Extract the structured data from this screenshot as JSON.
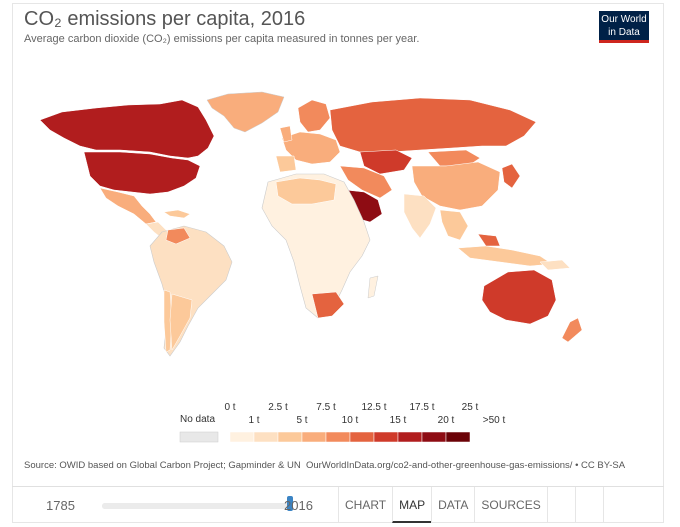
{
  "header": {
    "title": "CO₂ emissions per capita, 2016",
    "subtitle": "Average carbon dioxide (CO₂) emissions per capita measured in tonnes per year.",
    "logo_line1": "Our World",
    "logo_line2": "in Data"
  },
  "colors": {
    "ocean": "#ffffff",
    "no_data": "#e8e8e8",
    "border": "#cccccc",
    "accent_tab": "#333333",
    "slider_handle": "#3b84c4",
    "logo_bg": "#002147",
    "logo_bar": "#ce261e"
  },
  "legend": {
    "no_data_label": "No data",
    "bins_upper": [
      "0 t",
      "2.5 t",
      "7.5 t",
      "12.5 t",
      "17.5 t",
      "25 t"
    ],
    "bins_lower": [
      "1 t",
      "5 t",
      "10 t",
      "15 t",
      "20 t",
      ">50 t"
    ],
    "swatches": [
      "#fff1e0",
      "#fde0c2",
      "#fcc99a",
      "#f9ad7c",
      "#f28a5c",
      "#e4633f",
      "#cf3a2a",
      "#b11d1e",
      "#8e0c13",
      "#6b0207"
    ]
  },
  "source": {
    "text": "Source: OWID based on Global Carbon Project; Gapminder & UN",
    "url": "OurWorldInData.org/co2-and-other-greenhouse-gas-emissions/ • CC BY-SA"
  },
  "timeline": {
    "start_year": "1785",
    "end_year": "2016",
    "position_fraction": 1.0
  },
  "tabs": [
    {
      "label": "CHART",
      "active": false
    },
    {
      "label": "MAP",
      "active": true
    },
    {
      "label": "DATA",
      "active": false
    },
    {
      "label": "SOURCES",
      "active": false
    }
  ]
}
